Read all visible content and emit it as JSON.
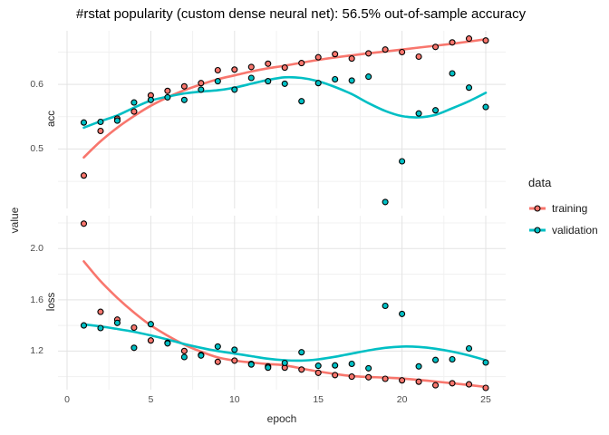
{
  "title": "#rstat popularity (custom dense neural net): 56.5% out-of-sample accuracy",
  "axes": {
    "x_label": "epoch",
    "y_label": "value"
  },
  "legend": {
    "title": "data",
    "entries": [
      {
        "label": "training",
        "color": "#F8766D"
      },
      {
        "label": "validation",
        "color": "#00BFC4"
      }
    ]
  },
  "colors": {
    "training": "#F8766D",
    "validation": "#00BFC4",
    "point_stroke": "#000000",
    "grid_major": "#e3e3e3",
    "grid_minor": "#f1f1f1"
  },
  "chart_data": [
    {
      "type": "scatter",
      "facet": "acc",
      "xlabel": "epoch",
      "ylabel": "value",
      "x": [
        1,
        2,
        3,
        4,
        5,
        6,
        7,
        8,
        9,
        10,
        11,
        12,
        13,
        14,
        15,
        16,
        17,
        18,
        19,
        20,
        21,
        22,
        23,
        24,
        25
      ],
      "xticks": [
        0,
        5,
        10,
        15,
        20,
        25
      ],
      "xminor": [
        2.5,
        7.5,
        12.5,
        17.5,
        22.5
      ],
      "yticks": [
        0.5,
        0.6
      ],
      "yminor": [
        0.45,
        0.55,
        0.65
      ],
      "ylim": [
        0.408,
        0.683
      ],
      "xlim": [
        -0.54,
        26.19
      ],
      "series": [
        {
          "name": "training",
          "values": [
            0.459,
            0.528,
            0.547,
            0.558,
            0.583,
            0.59,
            0.597,
            0.602,
            0.622,
            0.623,
            0.627,
            0.632,
            0.626,
            0.633,
            0.642,
            0.647,
            0.64,
            0.648,
            0.654,
            0.65,
            0.643,
            0.658,
            0.665,
            0.671,
            0.668
          ]
        },
        {
          "name": "validation",
          "values": [
            0.541,
            0.542,
            0.544,
            0.572,
            0.576,
            0.58,
            0.576,
            0.592,
            0.605,
            0.592,
            0.61,
            0.605,
            0.601,
            0.574,
            0.602,
            0.608,
            0.606,
            0.612,
            0.418,
            0.481,
            0.555,
            0.56,
            0.617,
            0.595,
            0.565
          ]
        }
      ],
      "smooth": [
        {
          "name": "training",
          "points": [
            [
              1,
              0.487
            ],
            [
              2,
              0.512
            ],
            [
              3,
              0.533
            ],
            [
              4,
              0.551
            ],
            [
              5,
              0.567
            ],
            [
              6,
              0.58
            ],
            [
              7,
              0.591
            ],
            [
              8,
              0.6
            ],
            [
              9,
              0.608
            ],
            [
              10,
              0.614
            ],
            [
              11,
              0.62
            ],
            [
              12,
              0.625
            ],
            [
              13,
              0.629
            ],
            [
              15,
              0.638
            ],
            [
              17,
              0.645
            ],
            [
              19,
              0.651
            ],
            [
              21,
              0.657
            ],
            [
              23,
              0.663
            ],
            [
              25,
              0.67
            ]
          ]
        },
        {
          "name": "validation",
          "points": [
            [
              1,
              0.533
            ],
            [
              2,
              0.543
            ],
            [
              3,
              0.552
            ],
            [
              4,
              0.564
            ],
            [
              5,
              0.575
            ],
            [
              6,
              0.581
            ],
            [
              7,
              0.586
            ],
            [
              8,
              0.589
            ],
            [
              9,
              0.591
            ],
            [
              10,
              0.595
            ],
            [
              11,
              0.601
            ],
            [
              12,
              0.607
            ],
            [
              13,
              0.611
            ],
            [
              14,
              0.61
            ],
            [
              15,
              0.605
            ],
            [
              16,
              0.596
            ],
            [
              17,
              0.585
            ],
            [
              18,
              0.571
            ],
            [
              19,
              0.559
            ],
            [
              20,
              0.551
            ],
            [
              21,
              0.549
            ],
            [
              22,
              0.553
            ],
            [
              23,
              0.563
            ],
            [
              24,
              0.574
            ],
            [
              25,
              0.587
            ]
          ]
        }
      ]
    },
    {
      "type": "scatter",
      "facet": "loss",
      "xlabel": "epoch",
      "ylabel": "value",
      "x": [
        1,
        2,
        3,
        4,
        5,
        6,
        7,
        8,
        9,
        10,
        11,
        12,
        13,
        14,
        15,
        16,
        17,
        18,
        19,
        20,
        21,
        22,
        23,
        24,
        25
      ],
      "xticks": [
        0,
        5,
        10,
        15,
        20,
        25
      ],
      "xminor": [
        2.5,
        7.5,
        12.5,
        17.5,
        22.5
      ],
      "yticks": [
        1.2,
        1.6,
        2.0
      ],
      "yminor": [
        1.0,
        1.4,
        1.8,
        2.2
      ],
      "ylim": [
        0.898,
        2.257
      ],
      "xlim": [
        -0.54,
        26.19
      ],
      "series": [
        {
          "name": "training",
          "values": [
            2.195,
            1.506,
            1.445,
            1.383,
            1.282,
            1.265,
            1.2,
            1.17,
            1.115,
            1.125,
            1.1,
            1.08,
            1.07,
            1.055,
            1.03,
            1.012,
            1.0,
            0.995,
            0.983,
            0.971,
            0.96,
            0.933,
            0.948,
            0.94,
            0.912
          ]
        },
        {
          "name": "validation",
          "values": [
            1.4,
            1.379,
            1.42,
            1.225,
            1.41,
            1.26,
            1.153,
            1.165,
            1.235,
            1.21,
            1.095,
            1.07,
            1.107,
            1.19,
            1.085,
            1.088,
            1.1,
            1.065,
            1.553,
            1.49,
            1.08,
            1.13,
            1.135,
            1.22,
            1.11
          ]
        }
      ],
      "smooth": [
        {
          "name": "training",
          "points": [
            [
              1,
              1.9
            ],
            [
              2,
              1.745
            ],
            [
              3,
              1.615
            ],
            [
              4,
              1.5
            ],
            [
              5,
              1.4
            ],
            [
              6,
              1.32
            ],
            [
              7,
              1.25
            ],
            [
              8,
              1.195
            ],
            [
              9,
              1.15
            ],
            [
              10,
              1.125
            ],
            [
              11,
              1.11
            ],
            [
              12,
              1.098
            ],
            [
              13,
              1.088
            ],
            [
              15,
              1.04
            ],
            [
              17,
              1.005
            ],
            [
              19,
              0.992
            ],
            [
              20,
              0.985
            ],
            [
              22,
              0.962
            ],
            [
              25,
              0.92
            ]
          ]
        },
        {
          "name": "validation",
          "points": [
            [
              1,
              1.408
            ],
            [
              2,
              1.392
            ],
            [
              3,
              1.372
            ],
            [
              4,
              1.35
            ],
            [
              5,
              1.322
            ],
            [
              6,
              1.29
            ],
            [
              7,
              1.255
            ],
            [
              8,
              1.225
            ],
            [
              9,
              1.2
            ],
            [
              10,
              1.18
            ],
            [
              11,
              1.16
            ],
            [
              12,
              1.14
            ],
            [
              13,
              1.128
            ],
            [
              14,
              1.125
            ],
            [
              15,
              1.135
            ],
            [
              16,
              1.155
            ],
            [
              17,
              1.18
            ],
            [
              18,
              1.205
            ],
            [
              19,
              1.225
            ],
            [
              20,
              1.235
            ],
            [
              21,
              1.232
            ],
            [
              22,
              1.218
            ],
            [
              23,
              1.195
            ],
            [
              24,
              1.165
            ],
            [
              25,
              1.128
            ]
          ]
        }
      ]
    }
  ]
}
